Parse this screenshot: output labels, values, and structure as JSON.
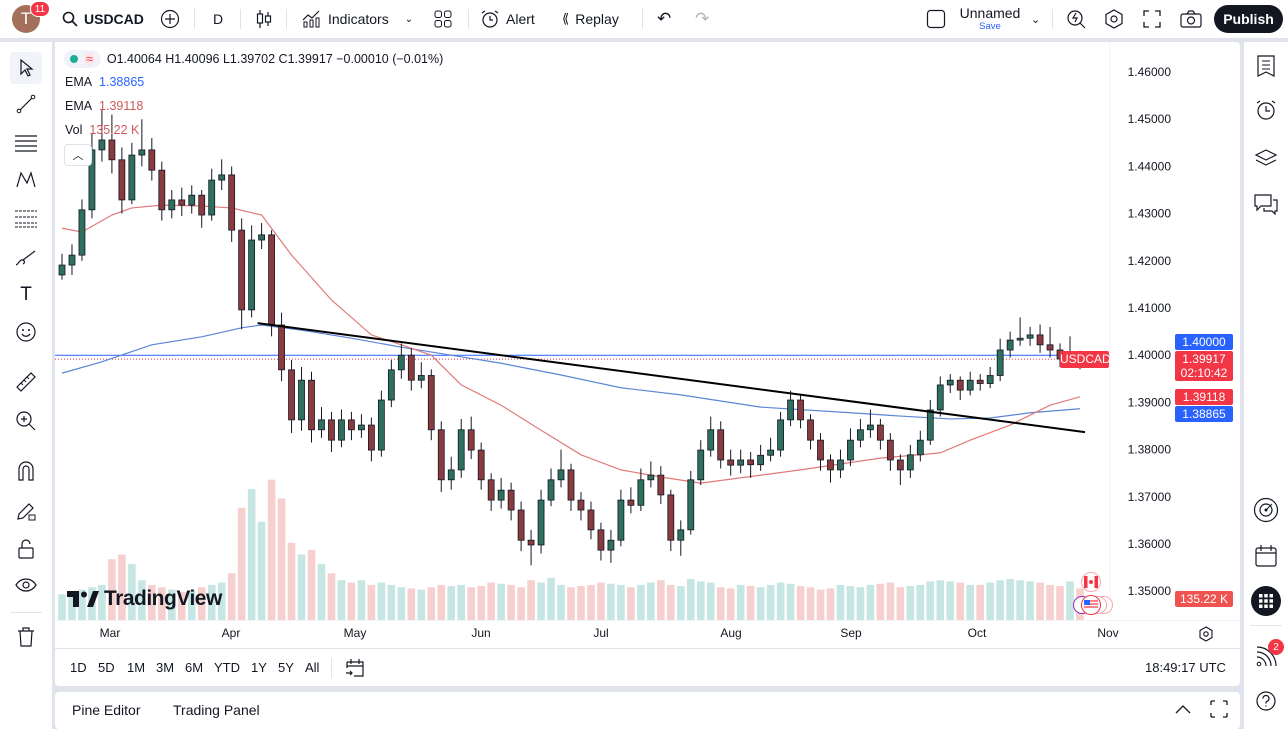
{
  "topbar": {
    "avatar_letter": "T",
    "notifications": "11",
    "symbol": "USDCAD",
    "interval": "D",
    "indicators_label": "Indicators",
    "alert_label": "Alert",
    "replay_label": "Replay",
    "layout_name": "Unnamed",
    "save_label": "Save",
    "publish_label": "Publish"
  },
  "legend": {
    "ohlc": "O1.40064 H1.40096 L1.39702 C1.39917 −0.00010 (−0.01%)",
    "ema1_label": "EMA",
    "ema1_value": "1.38865",
    "ema2_label": "EMA",
    "ema2_value": "1.39118",
    "vol_label": "Vol",
    "vol_value": "135.22 K"
  },
  "price_axis": {
    "ticks": [
      "1.46000",
      "1.45000",
      "1.44000",
      "1.43000",
      "1.42000",
      "1.41000",
      "1.40000",
      "1.39000",
      "1.38000",
      "1.37000",
      "1.36000",
      "1.35000"
    ],
    "tick_values": [
      1.46,
      1.45,
      1.44,
      1.43,
      1.42,
      1.41,
      1.4,
      1.39,
      1.38,
      1.37,
      1.36,
      1.35
    ],
    "hline_label": "1.40000",
    "symbol_tag": "USDCAD",
    "last_price": "1.39917",
    "countdown": "02:10:42",
    "ema_red_label": "1.39118",
    "ema_blue_label": "1.38865",
    "volume_label": "135.22 K"
  },
  "time_axis": {
    "months": [
      "Mar",
      "Apr",
      "May",
      "Jun",
      "Jul",
      "Aug",
      "Sep",
      "Oct",
      "Nov"
    ]
  },
  "range_bar": {
    "ranges": [
      "1D",
      "5D",
      "1M",
      "3M",
      "6M",
      "YTD",
      "1Y",
      "5Y",
      "All"
    ],
    "clock": "18:49:17 UTC"
  },
  "bottom_panel": {
    "tabs": [
      "Pine Editor",
      "Trading Panel"
    ]
  },
  "right_toolbar": {
    "ideas_badge": "2"
  },
  "watermark": "TradingView",
  "colors": {
    "up": "#2f6f5e",
    "down": "#8a3b40",
    "vol_up": "#c5e6e2",
    "vol_down": "#f6cfcf",
    "ema_fast": "#e07a7a",
    "ema_slow": "#5b86d6",
    "hline": "#2962ff",
    "last": "#f23645",
    "trendline": "#000000"
  },
  "chart_data": {
    "type": "candlestick",
    "symbol": "USDCAD",
    "ylim": [
      1.35,
      1.46
    ],
    "candles": [
      [
        1.417,
        1.4215,
        1.416,
        1.4191
      ],
      [
        1.4191,
        1.4235,
        1.417,
        1.4212
      ],
      [
        1.4212,
        1.433,
        1.42,
        1.4308
      ],
      [
        1.4308,
        1.447,
        1.429,
        1.4435
      ],
      [
        1.4435,
        1.452,
        1.441,
        1.4456
      ],
      [
        1.4456,
        1.451,
        1.4385,
        1.4414
      ],
      [
        1.4414,
        1.444,
        1.43,
        1.4329
      ],
      [
        1.4329,
        1.445,
        1.432,
        1.4424
      ],
      [
        1.4424,
        1.45,
        1.44,
        1.4435
      ],
      [
        1.4435,
        1.446,
        1.437,
        1.4392
      ],
      [
        1.4392,
        1.441,
        1.4285,
        1.4308
      ],
      [
        1.4308,
        1.435,
        1.429,
        1.4329
      ],
      [
        1.4329,
        1.4355,
        1.4295,
        1.4318
      ],
      [
        1.4318,
        1.436,
        1.43,
        1.4339
      ],
      [
        1.4339,
        1.435,
        1.427,
        1.4297
      ],
      [
        1.4297,
        1.4395,
        1.4285,
        1.4371
      ],
      [
        1.4371,
        1.4415,
        1.435,
        1.4382
      ],
      [
        1.4382,
        1.44,
        1.424,
        1.4265
      ],
      [
        1.4265,
        1.429,
        1.4055,
        1.4096
      ],
      [
        1.4096,
        1.4275,
        1.408,
        1.4244
      ],
      [
        1.4244,
        1.428,
        1.4225,
        1.4255
      ],
      [
        1.4255,
        1.4265,
        1.404,
        1.4064
      ],
      [
        1.4064,
        1.409,
        1.3945,
        1.3969
      ],
      [
        1.3969,
        1.399,
        1.3835,
        1.3863
      ],
      [
        1.3863,
        1.3975,
        1.384,
        1.3947
      ],
      [
        1.3947,
        1.3965,
        1.3815,
        1.3842
      ],
      [
        1.3842,
        1.389,
        1.3825,
        1.3863
      ],
      [
        1.3863,
        1.388,
        1.3795,
        1.382
      ],
      [
        1.382,
        1.3885,
        1.3805,
        1.3863
      ],
      [
        1.3863,
        1.388,
        1.382,
        1.3842
      ],
      [
        1.3842,
        1.3875,
        1.3825,
        1.3852
      ],
      [
        1.3852,
        1.3868,
        1.3775,
        1.3799
      ],
      [
        1.3799,
        1.3925,
        1.3785,
        1.3905
      ],
      [
        1.3905,
        1.399,
        1.389,
        1.3969
      ],
      [
        1.3969,
        1.4025,
        1.395,
        1.4
      ],
      [
        1.4,
        1.4015,
        1.3925,
        1.3947
      ],
      [
        1.3947,
        1.3985,
        1.393,
        1.3957
      ],
      [
        1.3957,
        1.397,
        1.382,
        1.3842
      ],
      [
        1.3842,
        1.386,
        1.371,
        1.3736
      ],
      [
        1.3736,
        1.3785,
        1.3715,
        1.3757
      ],
      [
        1.3757,
        1.3865,
        1.374,
        1.3842
      ],
      [
        1.3842,
        1.387,
        1.378,
        1.3799
      ],
      [
        1.3799,
        1.3815,
        1.3715,
        1.3736
      ],
      [
        1.3736,
        1.375,
        1.367,
        1.3693
      ],
      [
        1.3693,
        1.374,
        1.3675,
        1.3714
      ],
      [
        1.3714,
        1.373,
        1.365,
        1.3672
      ],
      [
        1.3672,
        1.369,
        1.3585,
        1.3608
      ],
      [
        1.3608,
        1.363,
        1.3555,
        1.3598
      ],
      [
        1.3598,
        1.3715,
        1.358,
        1.3693
      ],
      [
        1.3693,
        1.376,
        1.368,
        1.3736
      ],
      [
        1.3736,
        1.38,
        1.372,
        1.3757
      ],
      [
        1.3757,
        1.377,
        1.367,
        1.3693
      ],
      [
        1.3693,
        1.371,
        1.365,
        1.3672
      ],
      [
        1.3672,
        1.369,
        1.361,
        1.363
      ],
      [
        1.363,
        1.3645,
        1.3565,
        1.3587
      ],
      [
        1.3587,
        1.363,
        1.356,
        1.3608
      ],
      [
        1.3608,
        1.3715,
        1.3595,
        1.3693
      ],
      [
        1.3693,
        1.372,
        1.3665,
        1.3682
      ],
      [
        1.3682,
        1.376,
        1.367,
        1.3736
      ],
      [
        1.3736,
        1.3775,
        1.372,
        1.3746
      ],
      [
        1.3746,
        1.3765,
        1.3685,
        1.3704
      ],
      [
        1.3704,
        1.3715,
        1.3585,
        1.3608
      ],
      [
        1.3608,
        1.365,
        1.3575,
        1.363
      ],
      [
        1.363,
        1.3755,
        1.362,
        1.3736
      ],
      [
        1.3736,
        1.382,
        1.3725,
        1.3799
      ],
      [
        1.3799,
        1.387,
        1.3785,
        1.3842
      ],
      [
        1.3842,
        1.386,
        1.376,
        1.3778
      ],
      [
        1.3778,
        1.38,
        1.3745,
        1.3767
      ],
      [
        1.3767,
        1.38,
        1.375,
        1.3778
      ],
      [
        1.3778,
        1.3795,
        1.374,
        1.3768
      ],
      [
        1.3768,
        1.381,
        1.3755,
        1.3788
      ],
      [
        1.3788,
        1.3825,
        1.3775,
        1.3799
      ],
      [
        1.3799,
        1.388,
        1.3785,
        1.3863
      ],
      [
        1.3863,
        1.3925,
        1.385,
        1.3905
      ],
      [
        1.3905,
        1.3915,
        1.3845,
        1.3863
      ],
      [
        1.3863,
        1.3875,
        1.38,
        1.382
      ],
      [
        1.382,
        1.3835,
        1.3755,
        1.3778
      ],
      [
        1.3778,
        1.379,
        1.373,
        1.3757
      ],
      [
        1.3757,
        1.38,
        1.374,
        1.3778
      ],
      [
        1.3778,
        1.3845,
        1.3765,
        1.382
      ],
      [
        1.382,
        1.3865,
        1.3805,
        1.3842
      ],
      [
        1.3842,
        1.3885,
        1.3825,
        1.3852
      ],
      [
        1.3852,
        1.3865,
        1.38,
        1.382
      ],
      [
        1.382,
        1.3835,
        1.3755,
        1.3778
      ],
      [
        1.3778,
        1.379,
        1.3725,
        1.3757
      ],
      [
        1.3757,
        1.381,
        1.374,
        1.3789
      ],
      [
        1.3789,
        1.384,
        1.3775,
        1.382
      ],
      [
        1.382,
        1.3905,
        1.381,
        1.3884
      ],
      [
        1.3884,
        1.3955,
        1.387,
        1.3937
      ],
      [
        1.3937,
        1.396,
        1.392,
        1.3947
      ],
      [
        1.3947,
        1.3955,
        1.3905,
        1.3926
      ],
      [
        1.3926,
        1.3965,
        1.3915,
        1.3947
      ],
      [
        1.3947,
        1.396,
        1.3925,
        1.394
      ],
      [
        1.394,
        1.3975,
        1.393,
        1.3957
      ],
      [
        1.3957,
        1.4035,
        1.3945,
        1.4011
      ],
      [
        1.4011,
        1.405,
        1.3995,
        1.4032
      ],
      [
        1.4032,
        1.408,
        1.402,
        1.4036
      ],
      [
        1.4036,
        1.406,
        1.402,
        1.4043
      ],
      [
        1.4043,
        1.4065,
        1.4005,
        1.4022
      ],
      [
        1.4022,
        1.406,
        1.3995,
        1.4011
      ],
      [
        1.4011,
        1.4025,
        1.3975,
        1.3992
      ],
      [
        1.3992,
        1.404,
        1.398,
        1.4006
      ],
      [
        1.40064,
        1.40096,
        1.39702,
        1.39917
      ]
    ],
    "volume_k": [
      110,
      120,
      130,
      140,
      150,
      260,
      280,
      240,
      170,
      150,
      140,
      130,
      120,
      125,
      140,
      150,
      160,
      200,
      480,
      560,
      420,
      600,
      520,
      330,
      280,
      300,
      240,
      200,
      170,
      160,
      170,
      150,
      160,
      150,
      140,
      135,
      130,
      140,
      150,
      145,
      150,
      140,
      145,
      160,
      155,
      150,
      140,
      170,
      160,
      180,
      150,
      140,
      145,
      150,
      160,
      155,
      150,
      140,
      150,
      160,
      170,
      150,
      145,
      175,
      165,
      160,
      140,
      135,
      150,
      145,
      140,
      150,
      160,
      155,
      145,
      140,
      130,
      135,
      150,
      145,
      140,
      150,
      155,
      160,
      140,
      145,
      150,
      165,
      170,
      165,
      160,
      150,
      150,
      160,
      170,
      175,
      170,
      165,
      160,
      150,
      145,
      165,
      135.22
    ],
    "ema_fast": [
      [
        0,
        1.4269
      ],
      [
        2,
        1.4261
      ],
      [
        5,
        1.4297
      ],
      [
        7,
        1.4312
      ],
      [
        10,
        1.4318
      ],
      [
        14,
        1.4316
      ],
      [
        17,
        1.4312
      ],
      [
        20,
        1.4297
      ],
      [
        23,
        1.4212
      ],
      [
        27,
        1.4117
      ],
      [
        31,
        1.4043
      ],
      [
        34,
        1.4022
      ],
      [
        37,
        1.4
      ],
      [
        40,
        1.3937
      ],
      [
        44,
        1.3894
      ],
      [
        48,
        1.3841
      ],
      [
        52,
        1.3789
      ],
      [
        56,
        1.3757
      ],
      [
        60,
        1.3742
      ],
      [
        64,
        1.3729
      ],
      [
        74,
        1.3757
      ],
      [
        82,
        1.3782
      ],
      [
        88,
        1.3793
      ],
      [
        91,
        1.382
      ],
      [
        95,
        1.3852
      ],
      [
        99,
        1.3894
      ],
      [
        102,
        1.39118
      ]
    ],
    "ema_slow": [
      [
        0,
        1.3962
      ],
      [
        4,
        1.3986
      ],
      [
        9,
        1.4022
      ],
      [
        14,
        1.4039
      ],
      [
        18,
        1.4058
      ],
      [
        20,
        1.4064
      ],
      [
        24,
        1.4053
      ],
      [
        29,
        1.4036
      ],
      [
        34,
        1.4017
      ],
      [
        39,
        1.4
      ],
      [
        44,
        1.3983
      ],
      [
        50,
        1.3958
      ],
      [
        56,
        1.3931
      ],
      [
        62,
        1.3916
      ],
      [
        70,
        1.389
      ],
      [
        79,
        1.3878
      ],
      [
        84,
        1.3871
      ],
      [
        89,
        1.3865
      ],
      [
        93,
        1.3867
      ],
      [
        97,
        1.3878
      ],
      [
        102,
        1.38865
      ]
    ],
    "trendline": [
      [
        19.6,
        1.4068
      ],
      [
        102.5,
        1.3837
      ]
    ],
    "horizontal_line": 1.4,
    "last_price": 1.39917
  }
}
